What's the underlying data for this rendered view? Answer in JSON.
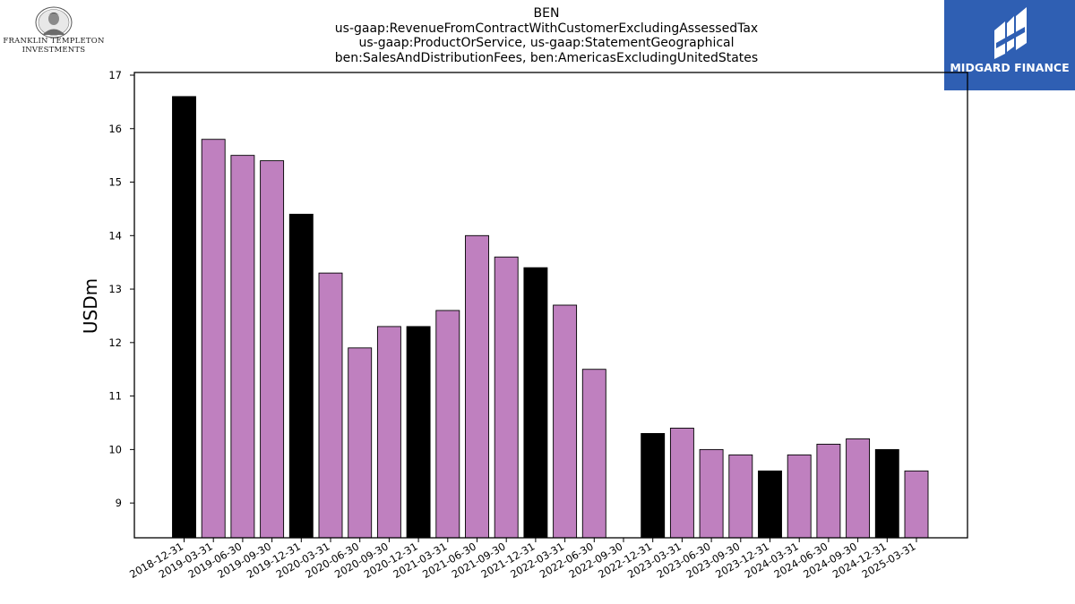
{
  "logos": {
    "left": {
      "name": "franklin-templeton-logo",
      "line1": "FRANKLIN TEMPLETON",
      "line2": "INVESTMENTS"
    },
    "right": {
      "name": "midgard-finance-logo",
      "text": "MIDGARD FINANCE",
      "background": "#2f5fb3"
    }
  },
  "chart_data": {
    "type": "bar",
    "title_lines": [
      "BEN",
      "us-gaap:RevenueFromContractWithCustomerExcludingAssessedTax",
      "us-gaap:ProductOrService, us-gaap:StatementGeographical",
      "ben:SalesAndDistributionFees, ben:AmericasExcludingUnitedStates"
    ],
    "xlabel": "",
    "ylabel": "USDm",
    "ylim": [
      8.35,
      17.05
    ],
    "yticks": [
      9,
      10,
      11,
      12,
      13,
      14,
      15,
      16,
      17
    ],
    "grid": false,
    "colors": {
      "q4": "#000000",
      "other": "#bf80bf"
    },
    "categories": [
      "2018-12-31",
      "2019-03-31",
      "2019-06-30",
      "2019-09-30",
      "2019-12-31",
      "2020-03-31",
      "2020-06-30",
      "2020-09-30",
      "2020-12-31",
      "2021-03-31",
      "2021-06-30",
      "2021-09-30",
      "2021-12-31",
      "2022-03-31",
      "2022-06-30",
      "2022-09-30",
      "2022-12-31",
      "2023-03-31",
      "2023-06-30",
      "2023-09-30",
      "2023-12-31",
      "2024-03-31",
      "2024-06-30",
      "2024-09-30",
      "2024-12-31",
      "2025-03-31"
    ],
    "values": [
      16.6,
      15.8,
      15.5,
      15.4,
      14.4,
      13.3,
      11.9,
      12.3,
      12.3,
      12.6,
      14.0,
      13.6,
      13.4,
      12.7,
      11.5,
      null,
      10.3,
      10.4,
      10.0,
      9.9,
      9.6,
      9.9,
      10.1,
      10.2,
      10.0,
      9.6
    ]
  }
}
